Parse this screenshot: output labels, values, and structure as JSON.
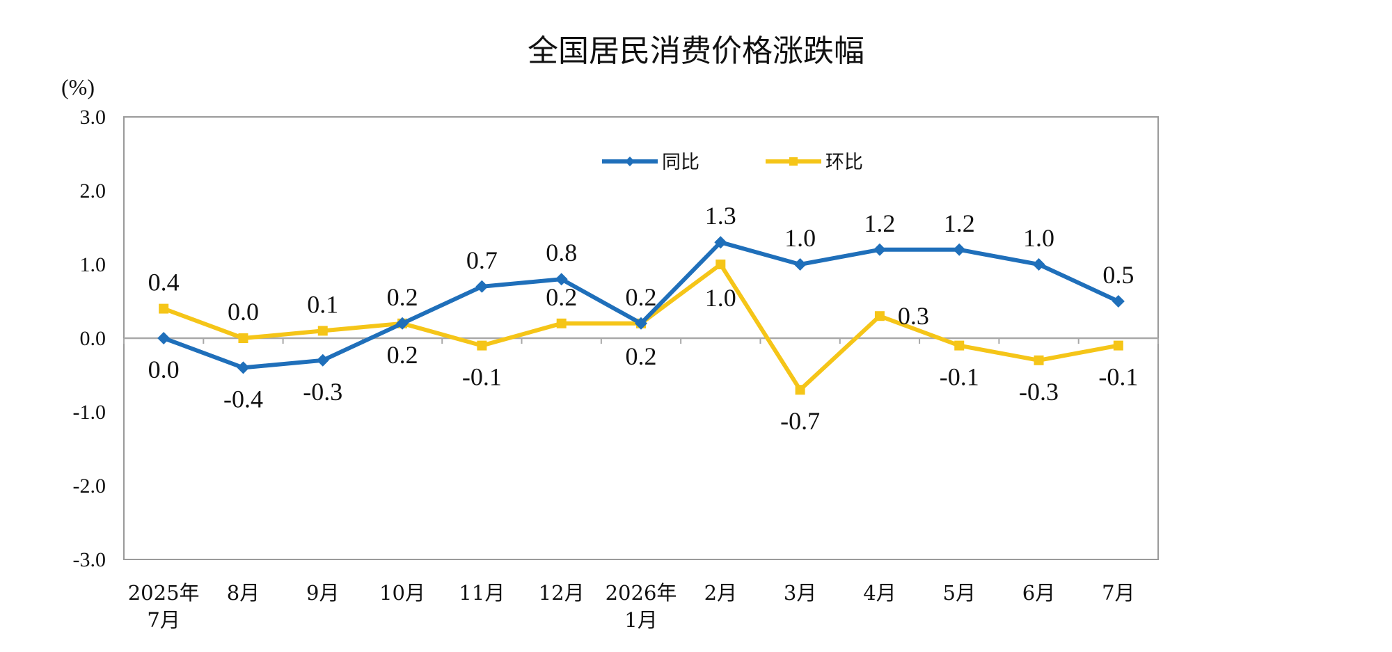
{
  "chart_data": {
    "type": "line",
    "title": "全国居民消费价格涨跌幅",
    "ylabel": "(%)",
    "xlabel": "",
    "ylim": [
      -3.0,
      3.0
    ],
    "yticks": [
      "3.0",
      "2.0",
      "1.0",
      "0.0",
      "-1.0",
      "-2.0",
      "-3.0"
    ],
    "categories": [
      [
        "2025年",
        "7月"
      ],
      [
        "8月"
      ],
      [
        "9月"
      ],
      [
        "10月"
      ],
      [
        "11月"
      ],
      [
        "12月"
      ],
      [
        "2026年",
        "1月"
      ],
      [
        "2月"
      ],
      [
        "3月"
      ],
      [
        "4月"
      ],
      [
        "5月"
      ],
      [
        "6月"
      ],
      [
        "7月"
      ]
    ],
    "series": [
      {
        "name": "同比",
        "color": "#1f6fba",
        "marker": "diamond",
        "values": [
          0.0,
          -0.4,
          -0.3,
          0.2,
          0.7,
          0.8,
          0.2,
          1.3,
          1.0,
          1.2,
          1.2,
          1.0,
          0.5
        ],
        "labels": [
          "0.0",
          "-0.4",
          "-0.3",
          "0.2",
          "0.7",
          "0.8",
          "0.2",
          "1.3",
          "1.0",
          "1.2",
          "1.2",
          "1.0",
          "0.5"
        ]
      },
      {
        "name": "环比",
        "color": "#f5c518",
        "marker": "square",
        "values": [
          0.4,
          0.0,
          0.1,
          0.2,
          -0.1,
          0.2,
          0.2,
          1.0,
          -0.7,
          0.3,
          -0.1,
          -0.3,
          -0.1
        ],
        "labels": [
          "0.4",
          "0.0",
          "0.1",
          "0.2",
          "-0.1",
          "0.2",
          "0.2",
          "1.0",
          "-0.7",
          "0.3",
          "-0.1",
          "-0.3",
          "-0.1"
        ]
      }
    ],
    "grid": false,
    "legend_position": "top-center"
  }
}
